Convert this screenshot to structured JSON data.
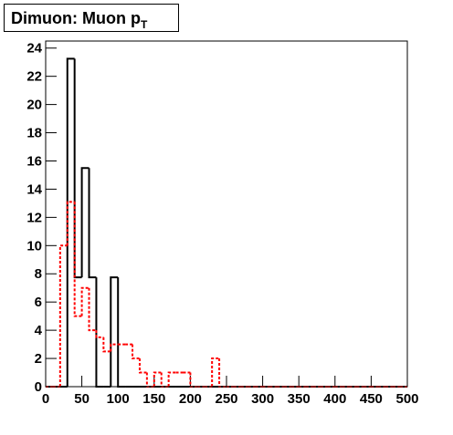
{
  "chart_data": {
    "type": "histogram",
    "title": "Dimuon: Muon p",
    "title_subscript": "T",
    "bins": [
      0,
      10,
      20,
      30,
      40,
      50,
      60,
      70,
      80,
      90,
      100,
      110,
      120,
      130,
      140,
      150,
      160,
      170,
      180,
      190,
      200,
      210,
      220,
      230,
      240,
      250,
      260,
      270,
      280,
      290,
      300,
      310,
      320,
      330,
      340,
      350,
      360,
      370,
      380,
      390,
      400,
      410,
      420,
      430,
      440,
      450,
      460,
      470,
      480,
      490,
      500
    ],
    "series": [
      {
        "color": "#000000",
        "line_style": "solid",
        "values": [
          0,
          0,
          0,
          23.25,
          7.75,
          15.5,
          7.75,
          0,
          0,
          7.75,
          0,
          0,
          0,
          0,
          0,
          0,
          0,
          0,
          0,
          0,
          0,
          0,
          0,
          0,
          0,
          0,
          0,
          0,
          0,
          0,
          0,
          0,
          0,
          0,
          0,
          0,
          0,
          0,
          0,
          0,
          0,
          0,
          0,
          0,
          0,
          0,
          0,
          0,
          0,
          0
        ]
      },
      {
        "color": "#ff0000",
        "line_style": "dashed",
        "values": [
          0,
          0,
          10,
          13.1,
          5,
          7,
          4,
          3.5,
          2.5,
          3,
          3,
          3,
          2,
          1,
          0,
          1,
          0,
          1,
          1,
          1,
          0,
          0,
          0,
          2,
          0,
          0,
          0,
          0,
          0,
          0,
          0,
          0,
          0,
          0,
          0,
          0,
          0,
          0,
          0,
          0,
          0,
          0,
          0,
          0,
          0,
          0,
          0,
          0,
          0,
          0
        ]
      }
    ],
    "xlim": [
      0,
      500
    ],
    "xticks": [
      0,
      50,
      100,
      150,
      200,
      250,
      300,
      350,
      400,
      450,
      500
    ],
    "ylim": [
      0,
      24.5
    ],
    "yticks": [
      0,
      2,
      4,
      6,
      8,
      10,
      12,
      14,
      16,
      18,
      20,
      22,
      24
    ]
  }
}
